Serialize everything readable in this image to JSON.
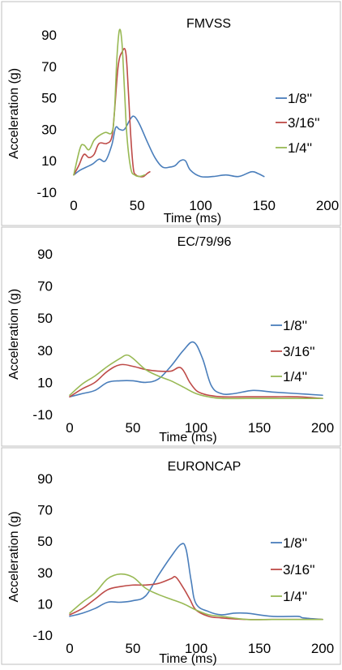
{
  "chart_data": [
    {
      "type": "line",
      "title": "FMVSS",
      "xlabel": "Time (ms)",
      "ylabel": "Acceleration (g)",
      "xlim": [
        0,
        200
      ],
      "ylim": [
        -10,
        90
      ],
      "xticks": [
        0,
        50,
        100,
        150,
        200
      ],
      "yticks": [
        -10,
        10,
        30,
        50,
        70,
        90
      ],
      "legend_position": "right",
      "series": [
        {
          "name": "1/8''",
          "color": "#4a7ebb",
          "points": [
            [
              0,
              1
            ],
            [
              5,
              4
            ],
            [
              10,
              6
            ],
            [
              15,
              8
            ],
            [
              20,
              11
            ],
            [
              25,
              10
            ],
            [
              30,
              20
            ],
            [
              33,
              31
            ],
            [
              36,
              30
            ],
            [
              40,
              30
            ],
            [
              45,
              37
            ],
            [
              48,
              38
            ],
            [
              52,
              33
            ],
            [
              58,
              22
            ],
            [
              64,
              12
            ],
            [
              70,
              6
            ],
            [
              76,
              6
            ],
            [
              80,
              7
            ],
            [
              84,
              10
            ],
            [
              88,
              10
            ],
            [
              92,
              4
            ],
            [
              100,
              0
            ],
            [
              110,
              0
            ],
            [
              120,
              1
            ],
            [
              130,
              0
            ],
            [
              140,
              3
            ],
            [
              145,
              2
            ],
            [
              150,
              0
            ]
          ]
        },
        {
          "name": "3/16''",
          "color": "#be4b48",
          "points": [
            [
              0,
              1
            ],
            [
              4,
              7
            ],
            [
              8,
              14
            ],
            [
              12,
              12
            ],
            [
              16,
              14
            ],
            [
              20,
              21
            ],
            [
              26,
              21
            ],
            [
              30,
              25
            ],
            [
              32,
              40
            ],
            [
              35,
              70
            ],
            [
              38,
              79
            ],
            [
              41,
              79
            ],
            [
              43,
              55
            ],
            [
              45,
              25
            ],
            [
              47,
              5
            ],
            [
              49,
              1
            ],
            [
              52,
              0
            ],
            [
              55,
              0
            ],
            [
              58,
              2
            ],
            [
              60,
              3
            ]
          ]
        },
        {
          "name": "1/4''",
          "color": "#98b954",
          "points": [
            [
              0,
              1
            ],
            [
              5,
              18
            ],
            [
              8,
              20
            ],
            [
              12,
              17
            ],
            [
              16,
              23
            ],
            [
              20,
              26
            ],
            [
              25,
              28
            ],
            [
              30,
              28
            ],
            [
              32,
              40
            ],
            [
              34,
              75
            ],
            [
              36,
              93
            ],
            [
              38,
              85
            ],
            [
              40,
              55
            ],
            [
              42,
              25
            ],
            [
              45,
              5
            ],
            [
              48,
              1
            ],
            [
              52,
              0
            ],
            [
              56,
              1
            ]
          ]
        }
      ]
    },
    {
      "type": "line",
      "title": "EC/79/96",
      "xlabel": "Time (ms)",
      "ylabel": "Acceleration (g)",
      "xlim": [
        0,
        200
      ],
      "ylim": [
        -10,
        90
      ],
      "xticks": [
        0,
        50,
        100,
        150,
        200
      ],
      "yticks": [
        -10,
        10,
        30,
        50,
        70,
        90
      ],
      "legend_position": "right",
      "series": [
        {
          "name": "1/8''",
          "color": "#4a7ebb",
          "points": [
            [
              0,
              1
            ],
            [
              10,
              3
            ],
            [
              20,
              5
            ],
            [
              30,
              10
            ],
            [
              40,
              11
            ],
            [
              50,
              11
            ],
            [
              60,
              10
            ],
            [
              70,
              12
            ],
            [
              80,
              20
            ],
            [
              90,
              30
            ],
            [
              98,
              35
            ],
            [
              105,
              25
            ],
            [
              112,
              8
            ],
            [
              120,
              3
            ],
            [
              130,
              3
            ],
            [
              145,
              5
            ],
            [
              160,
              4
            ],
            [
              180,
              3
            ],
            [
              200,
              2
            ]
          ]
        },
        {
          "name": "3/16''",
          "color": "#be4b48",
          "points": [
            [
              0,
              1
            ],
            [
              10,
              6
            ],
            [
              20,
              10
            ],
            [
              30,
              17
            ],
            [
              40,
              21
            ],
            [
              50,
              20
            ],
            [
              60,
              18
            ],
            [
              70,
              17
            ],
            [
              80,
              17
            ],
            [
              88,
              19
            ],
            [
              95,
              10
            ],
            [
              100,
              5
            ],
            [
              105,
              3
            ],
            [
              110,
              2
            ],
            [
              120,
              1
            ],
            [
              140,
              1
            ],
            [
              160,
              1
            ],
            [
              180,
              1
            ],
            [
              200,
              0
            ]
          ]
        },
        {
          "name": "1/4''",
          "color": "#98b954",
          "points": [
            [
              0,
              2
            ],
            [
              10,
              9
            ],
            [
              20,
              14
            ],
            [
              30,
              20
            ],
            [
              40,
              25
            ],
            [
              45,
              27
            ],
            [
              50,
              25
            ],
            [
              60,
              18
            ],
            [
              70,
              14
            ],
            [
              80,
              11
            ],
            [
              90,
              7
            ],
            [
              100,
              3
            ],
            [
              110,
              1
            ],
            [
              120,
              0
            ],
            [
              140,
              0
            ],
            [
              160,
              0
            ],
            [
              180,
              0
            ],
            [
              200,
              0
            ]
          ]
        }
      ]
    },
    {
      "type": "line",
      "title": "EURONCAP",
      "xlabel": "Time (ms)",
      "ylabel": "Acceleration (g)",
      "xlim": [
        0,
        200
      ],
      "ylim": [
        -10,
        90
      ],
      "xticks": [
        0,
        50,
        100,
        150,
        200
      ],
      "yticks": [
        -10,
        10,
        30,
        50,
        70,
        90
      ],
      "legend_position": "right",
      "series": [
        {
          "name": "1/8''",
          "color": "#4a7ebb",
          "points": [
            [
              0,
              2
            ],
            [
              10,
              4
            ],
            [
              20,
              7
            ],
            [
              30,
              11
            ],
            [
              40,
              11
            ],
            [
              50,
              12
            ],
            [
              60,
              15
            ],
            [
              70,
              28
            ],
            [
              80,
              40
            ],
            [
              88,
              48
            ],
            [
              92,
              45
            ],
            [
              96,
              25
            ],
            [
              100,
              10
            ],
            [
              110,
              5
            ],
            [
              120,
              3
            ],
            [
              130,
              4
            ],
            [
              140,
              4
            ],
            [
              160,
              2
            ],
            [
              180,
              2
            ],
            [
              185,
              1
            ],
            [
              200,
              0
            ]
          ]
        },
        {
          "name": "3/16''",
          "color": "#be4b48",
          "points": [
            [
              0,
              3
            ],
            [
              10,
              7
            ],
            [
              20,
              13
            ],
            [
              30,
              19
            ],
            [
              40,
              21
            ],
            [
              50,
              22
            ],
            [
              60,
              22
            ],
            [
              70,
              23
            ],
            [
              80,
              26
            ],
            [
              84,
              27
            ],
            [
              90,
              20
            ],
            [
              95,
              13
            ],
            [
              100,
              6
            ],
            [
              110,
              2
            ],
            [
              120,
              1
            ],
            [
              140,
              0
            ],
            [
              160,
              0
            ],
            [
              180,
              0
            ],
            [
              200,
              0
            ]
          ]
        },
        {
          "name": "1/4''",
          "color": "#98b954",
          "points": [
            [
              0,
              4
            ],
            [
              10,
              11
            ],
            [
              20,
              17
            ],
            [
              30,
              26
            ],
            [
              40,
              29
            ],
            [
              50,
              27
            ],
            [
              60,
              20
            ],
            [
              70,
              16
            ],
            [
              80,
              13
            ],
            [
              90,
              10
            ],
            [
              100,
              6
            ],
            [
              110,
              3
            ],
            [
              120,
              2
            ],
            [
              140,
              0
            ],
            [
              160,
              0
            ],
            [
              180,
              0
            ],
            [
              200,
              0
            ]
          ]
        }
      ]
    }
  ]
}
